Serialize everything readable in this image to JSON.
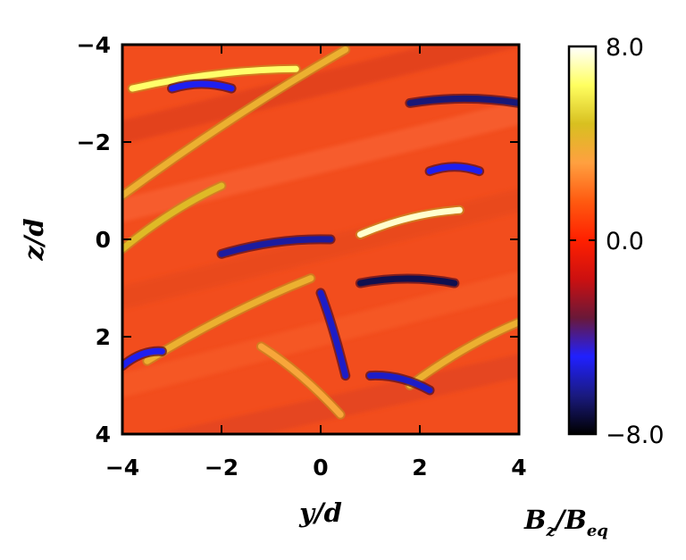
{
  "chart_data": {
    "type": "heatmap",
    "title": "",
    "xlabel": "y/d",
    "ylabel": "z/d",
    "xlim": [
      -4,
      4
    ],
    "ylim": [
      -4,
      4
    ],
    "y_axis_inverted": true,
    "x_ticks": [
      "−4",
      "−2",
      "0",
      "2",
      "4"
    ],
    "x_tick_values": [
      -4,
      -2,
      0,
      2,
      4
    ],
    "y_ticks": [
      "−4",
      "−2",
      "0",
      "2",
      "4"
    ],
    "y_tick_values": [
      -4,
      -2,
      0,
      2,
      4
    ],
    "colorbar": {
      "label_main": "B",
      "label_main_sub": "z",
      "label_sep": "/B",
      "label_ref_sub": "eq",
      "range": [
        -8.0,
        8.0
      ],
      "ticks": [
        "8.0",
        "0.0",
        "−8.0"
      ],
      "tick_values": [
        8.0,
        0.0,
        -8.0
      ],
      "colors": [
        "#000000",
        "#1a1a80",
        "#2020ff",
        "#6a1838",
        "#cc1010",
        "#ff2000",
        "#ff5a10",
        "#ffa040",
        "#d8c020",
        "#ffff60",
        "#ffffff"
      ]
    },
    "field_background_color": "#f24d1d",
    "features": [
      {
        "kind": "positive-streak",
        "y0": -4.0,
        "z0": -0.9,
        "y1": 0.5,
        "z1": -3.9,
        "value": 4.0
      },
      {
        "kind": "positive-streak",
        "y0": -3.8,
        "z0": -3.1,
        "y1": -0.5,
        "z1": -3.5,
        "value": 6.5
      },
      {
        "kind": "positive-streak",
        "y0": -4.0,
        "z0": 0.2,
        "y1": -2.0,
        "z1": -1.1,
        "value": 4.5
      },
      {
        "kind": "positive-streak",
        "y0": -3.5,
        "z0": 2.5,
        "y1": -0.2,
        "z1": 0.8,
        "value": 4.0
      },
      {
        "kind": "positive-streak",
        "y0": 0.8,
        "z0": -0.1,
        "y1": 2.8,
        "z1": -0.6,
        "value": 7.5
      },
      {
        "kind": "positive-streak",
        "y0": 1.8,
        "z0": 3.0,
        "y1": 4.0,
        "z1": 1.7,
        "value": 4.0
      },
      {
        "kind": "positive-streak",
        "y0": -1.2,
        "z0": 2.2,
        "y1": 0.4,
        "z1": 3.6,
        "value": 3.5
      },
      {
        "kind": "negative-streak",
        "y0": 1.8,
        "z0": -2.8,
        "y1": 4.0,
        "z1": -2.8,
        "value": -6.5
      },
      {
        "kind": "negative-streak",
        "y0": -2.0,
        "z0": 0.3,
        "y1": 0.2,
        "z1": 0.0,
        "value": -6.0
      },
      {
        "kind": "negative-streak",
        "y0": 0.8,
        "z0": 0.9,
        "y1": 2.7,
        "z1": 0.9,
        "value": -7.0
      },
      {
        "kind": "negative-streak",
        "y0": 0.0,
        "z0": 1.1,
        "y1": 0.5,
        "z1": 2.8,
        "value": -5.5
      },
      {
        "kind": "negative-streak",
        "y0": 1.0,
        "z0": 2.8,
        "y1": 2.2,
        "z1": 3.1,
        "value": -5.5
      },
      {
        "kind": "negative-streak",
        "y0": -3.0,
        "z0": -3.1,
        "y1": -1.8,
        "z1": -3.1,
        "value": -5.0
      },
      {
        "kind": "negative-streak",
        "y0": -4.0,
        "z0": 2.6,
        "y1": -3.2,
        "z1": 2.3,
        "value": -5.0
      },
      {
        "kind": "negative-streak",
        "y0": 2.2,
        "z0": -1.4,
        "y1": 3.2,
        "z1": -1.4,
        "value": -5.0
      }
    ]
  }
}
